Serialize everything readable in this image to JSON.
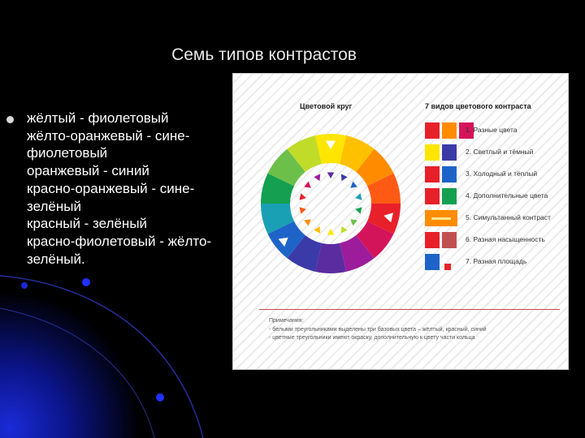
{
  "slide": {
    "title": "Семь типов контрастов",
    "lines": [
      "жёлтый - фиолетовый",
      "жёлто-оранжевый - сине-",
      "фиолетовый",
      "оранжевый - синий",
      "красно-оранжевый - сине-",
      "зелёный",
      "красный - зелёный",
      "красно-фиолетовый - жёлто-",
      "зелёный."
    ]
  },
  "figure": {
    "wheel_title": "Цветовой круг",
    "legend_title": "7 видов цветового контраста",
    "wheel_colors": [
      "#ffe600",
      "#ffc000",
      "#ff8c00",
      "#ff5a14",
      "#e8202a",
      "#d4145a",
      "#9c1c9c",
      "#5a2ca0",
      "#3a3aa8",
      "#1e64c8",
      "#1aa0b4",
      "#14a050",
      "#6cc04a",
      "#c0dc28"
    ],
    "legend": [
      {
        "label": "1. Разные цвета",
        "colors": [
          "#e8202a",
          "#ff8c00",
          "#d4145a"
        ]
      },
      {
        "label": "2. Светлый и тёмный",
        "colors": [
          "#ffe600",
          "#3a3aa8"
        ]
      },
      {
        "label": "3. Холодный и тёплый",
        "colors": [
          "#e8202a",
          "#1e64c8"
        ]
      },
      {
        "label": "4. Дополнительные цвета",
        "colors": [
          "#e8202a",
          "#14a050"
        ]
      },
      {
        "label": "5. Симультанный контраст",
        "colors": [
          "#ff8c00"
        ]
      },
      {
        "label": "6. Разная насыщенность",
        "colors": [
          "#e8202a",
          "#c05050"
        ]
      },
      {
        "label": "7. Разная площадь",
        "colors": [
          "#1e64c8",
          "#e8202a"
        ]
      }
    ],
    "note_title": "Примечания:",
    "note_lines": [
      "- белыми треугольниками выделены три базовых цвета – жёлтый, красный, синий",
      "- цветные треугольники имеют окраску, дополнительную к цвету части кольца"
    ]
  }
}
